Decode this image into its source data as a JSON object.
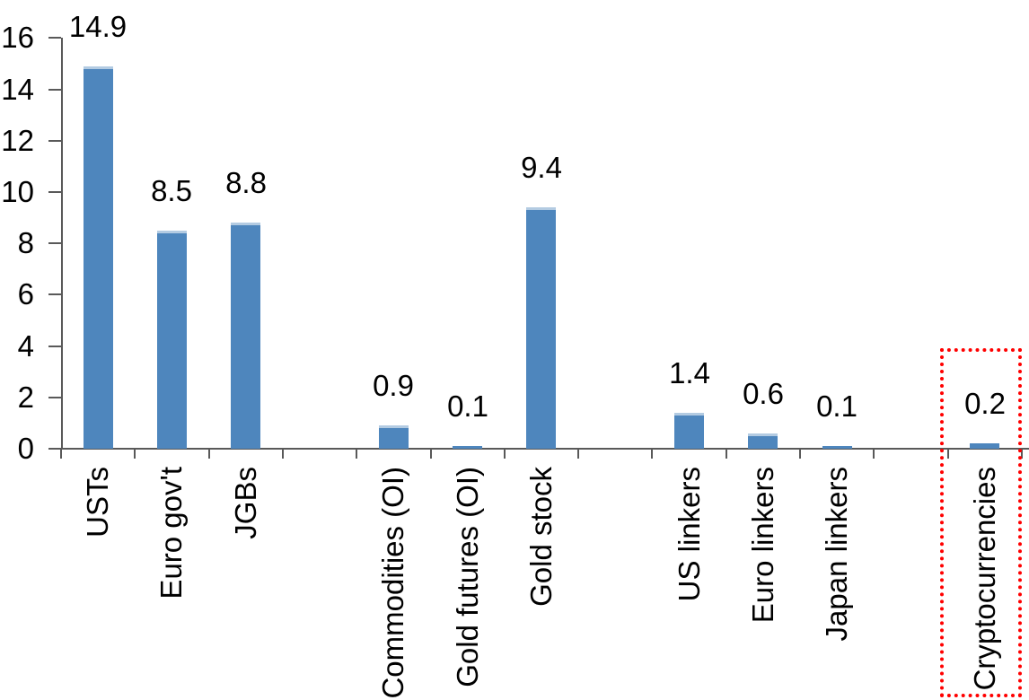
{
  "chart_data": {
    "type": "bar",
    "yticks": [
      "0",
      "2",
      "4",
      "6",
      "8",
      "10",
      "12",
      "14",
      "16"
    ],
    "ylim": [
      0,
      16
    ],
    "grid": false,
    "legend": "none",
    "bar_color": "#4e86bd",
    "bar_top_edge_color": "#b3cbe2",
    "axis_color": "#595959",
    "label_color": "#000000",
    "slot_count": 13,
    "bars": [
      {
        "label": "USTs",
        "value": 14.9,
        "value_label": "14.9",
        "slot": 0,
        "highlighted": false
      },
      {
        "label": "Euro gov't",
        "value": 8.5,
        "value_label": "8.5",
        "slot": 1,
        "highlighted": false
      },
      {
        "label": "JGBs",
        "value": 8.8,
        "value_label": "8.8",
        "slot": 2,
        "highlighted": false
      },
      {
        "label": "Commodities (OI)",
        "value": 0.9,
        "value_label": "0.9",
        "slot": 4,
        "highlighted": false
      },
      {
        "label": "Gold futures (OI)",
        "value": 0.1,
        "value_label": "0.1",
        "slot": 5,
        "highlighted": false
      },
      {
        "label": "Gold stock",
        "value": 9.4,
        "value_label": "9.4",
        "slot": 6,
        "highlighted": false
      },
      {
        "label": "US linkers",
        "value": 1.4,
        "value_label": "1.4",
        "slot": 8,
        "highlighted": false
      },
      {
        "label": "Euro linkers",
        "value": 0.6,
        "value_label": "0.6",
        "slot": 9,
        "highlighted": false
      },
      {
        "label": "Japan linkers",
        "value": 0.1,
        "value_label": "0.1",
        "slot": 10,
        "highlighted": false
      },
      {
        "label": "Cryptocurrencies",
        "value": 0.2,
        "value_label": "0.2",
        "slot": 12,
        "highlighted": true
      }
    ],
    "highlight": {
      "style": "red-dotted-box",
      "color": "#ff0000",
      "category": "Cryptocurrencies"
    }
  }
}
